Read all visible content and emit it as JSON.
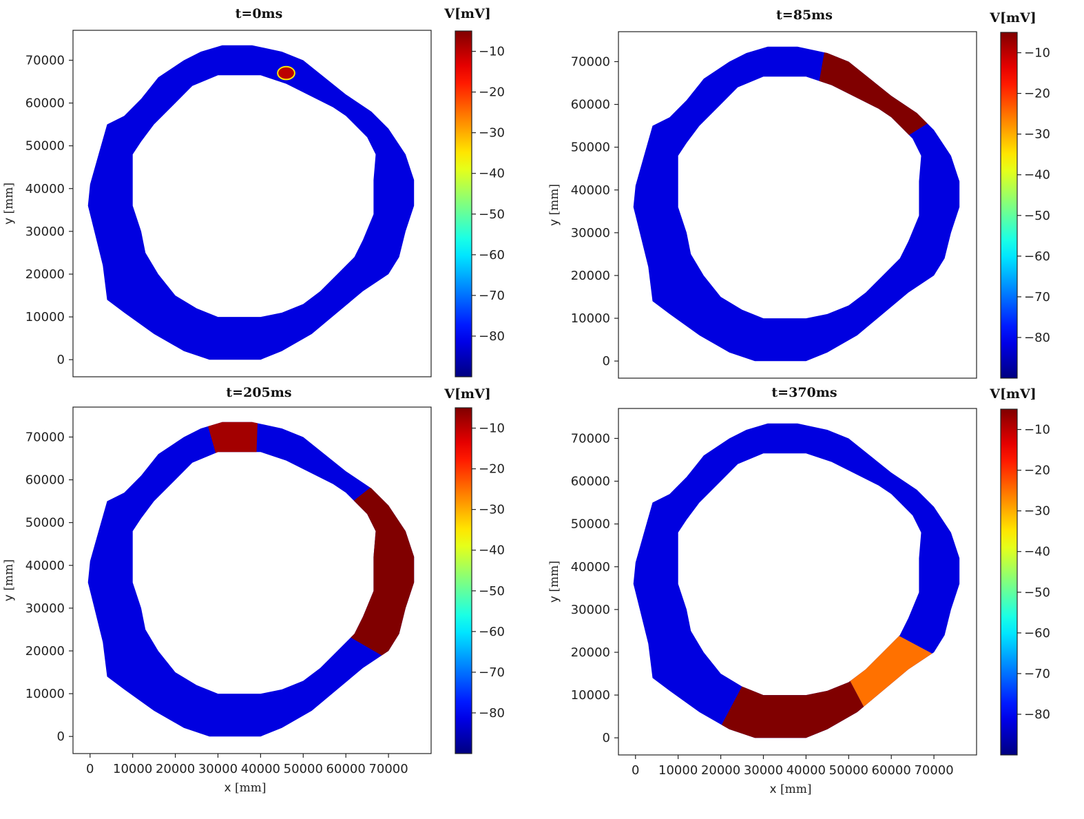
{
  "chart_data": [
    {
      "type": "heatmap",
      "title": "t=0ms",
      "xlabel": "x",
      "xunit": "[mm]",
      "ylabel": "y",
      "yunit": "[mm]",
      "show_xticks": false,
      "xlim": [
        -4000,
        80000
      ],
      "ylim": [
        -4000,
        77000
      ],
      "xticks": [],
      "yticks": [
        "0",
        "10000",
        "20000",
        "30000",
        "40000",
        "50000",
        "60000",
        "70000"
      ],
      "ytick_values": [
        0,
        10000,
        20000,
        30000,
        40000,
        50000,
        60000,
        70000
      ],
      "colorbar": {
        "label": "V[mV]",
        "range": [
          -90,
          -5
        ],
        "ticks": [
          "-10",
          "-20",
          "-30",
          "-40",
          "-50",
          "-60",
          "-70",
          "-80"
        ],
        "tick_values": [
          -10,
          -20,
          -30,
          -40,
          -50,
          -60,
          -70,
          -80
        ]
      },
      "state": "resting tissue with a small excitation spot near the top",
      "patches": [
        {
          "region": "small spot near top",
          "x": [
            44000,
            48000
          ],
          "y": [
            65500,
            68500
          ],
          "value": -10
        }
      ]
    },
    {
      "type": "heatmap",
      "title": "t=85ms",
      "xlabel": "x",
      "xunit": "[mm]",
      "ylabel": "y",
      "yunit": "[mm]",
      "show_xticks": false,
      "xlim": [
        -4000,
        80000
      ],
      "ylim": [
        -4000,
        77000
      ],
      "xticks": [],
      "yticks": [
        "0",
        "10000",
        "20000",
        "30000",
        "40000",
        "50000",
        "60000",
        "70000"
      ],
      "ytick_values": [
        0,
        10000,
        20000,
        30000,
        40000,
        50000,
        60000,
        70000
      ],
      "colorbar": {
        "label": "V[mV]",
        "range": [
          -90,
          -5
        ],
        "ticks": [
          "-10",
          "-20",
          "-30",
          "-40",
          "-50",
          "-60",
          "-70",
          "-80"
        ],
        "tick_values": [
          -10,
          -20,
          -30,
          -40,
          -50,
          -60,
          -70,
          -80
        ]
      },
      "state": "excitation wave spreading clockwise across the upper right of the ring",
      "patches": [
        {
          "region": "upper right arc",
          "angle_from": 80,
          "angle_to": 32,
          "value": -5
        }
      ]
    },
    {
      "type": "heatmap",
      "title": "t=205ms",
      "xlabel": "x",
      "xunit": "[mm]",
      "ylabel": "y",
      "yunit": "[mm]",
      "show_xticks": true,
      "xlim": [
        -4000,
        80000
      ],
      "ylim": [
        -4000,
        77000
      ],
      "xticks": [
        "0",
        "10000",
        "20000",
        "30000",
        "40000",
        "50000",
        "60000",
        "70000"
      ],
      "xtick_values": [
        0,
        10000,
        20000,
        30000,
        40000,
        50000,
        60000,
        70000
      ],
      "yticks": [
        "0",
        "10000",
        "20000",
        "30000",
        "40000",
        "50000",
        "60000",
        "70000"
      ],
      "ytick_values": [
        0,
        10000,
        20000,
        30000,
        40000,
        50000,
        60000,
        70000
      ],
      "colorbar": {
        "label": "V[mV]",
        "range": [
          -90,
          -5
        ],
        "ticks": [
          "-10",
          "-20",
          "-30",
          "-40",
          "-50",
          "-60",
          "-70",
          "-80"
        ],
        "tick_values": [
          -10,
          -20,
          -30,
          -40,
          -50,
          -60,
          -70,
          -80
        ]
      },
      "state": "depolarized band on the right side of the ring and along the top",
      "patches": [
        {
          "region": "right side arc",
          "angle_from": 38,
          "angle_to": -30,
          "value": -5
        },
        {
          "region": "top strip",
          "angle_from": 106,
          "angle_to": 88,
          "value": -8
        }
      ]
    },
    {
      "type": "heatmap",
      "title": "t=370ms",
      "xlabel": "x",
      "xunit": "[mm]",
      "ylabel": "y",
      "yunit": "[mm]",
      "show_xticks": true,
      "xlim": [
        -4000,
        80000
      ],
      "ylim": [
        -4000,
        77000
      ],
      "xticks": [
        "0",
        "10000",
        "20000",
        "30000",
        "40000",
        "50000",
        "60000",
        "70000"
      ],
      "xtick_values": [
        0,
        10000,
        20000,
        30000,
        40000,
        50000,
        60000,
        70000
      ],
      "yticks": [
        "0",
        "10000",
        "20000",
        "30000",
        "40000",
        "50000",
        "60000",
        "70000"
      ],
      "ytick_values": [
        0,
        10000,
        20000,
        30000,
        40000,
        50000,
        60000,
        70000
      ],
      "colorbar": {
        "label": "V[mV]",
        "range": [
          -90,
          -5
        ],
        "ticks": [
          "-10",
          "-20",
          "-30",
          "-40",
          "-50",
          "-60",
          "-70",
          "-80"
        ],
        "tick_values": [
          -10,
          -20,
          -30,
          -40,
          -50,
          -60,
          -70,
          -80
        ]
      },
      "state": "depolarized region at the bottom of the ring with yellow-orange gradient to the lower right",
      "patches": [
        {
          "region": "bottom arc",
          "angle_from": -118,
          "angle_to": -62,
          "value": -5
        },
        {
          "region": "lower right arc",
          "angle_from": -62,
          "angle_to": -28,
          "value": -25
        }
      ]
    }
  ]
}
